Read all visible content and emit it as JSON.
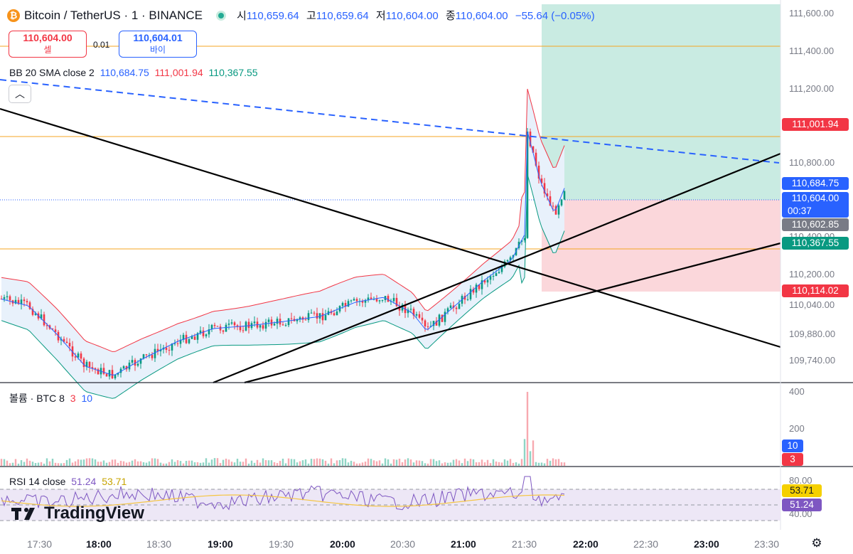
{
  "header": {
    "title": "Bitcoin / TetherUS · 1 · BINANCE",
    "ohlc": {
      "open_label": "시",
      "open": "110,659.64",
      "high_label": "고",
      "high": "110,659.64",
      "low_label": "저",
      "low": "110,604.00",
      "close_label": "종",
      "close": "110,604.00",
      "change": "−55.64 (−0.05%)"
    }
  },
  "trade": {
    "sell_price": "110,604.00",
    "sell_label": "셀",
    "spread": "0.01",
    "buy_price": "110,604.01",
    "buy_label": "바이"
  },
  "indicators": {
    "bb": {
      "name": "BB 20 SMA close 2",
      "basis": "110,684.75",
      "upper": "111,001.94",
      "lower": "110,367.55"
    },
    "volume": {
      "name": "볼륨 · BTC 8",
      "a": "3",
      "b": "10"
    },
    "rsi": {
      "name": "RSI 14 close",
      "value": "51.24",
      "ma": "53.71"
    }
  },
  "price_axis": {
    "ticks": [
      "111,600.00",
      "111,400.00",
      "111,200.00",
      "110,800.00",
      "110,400.00",
      "110,200.00",
      "110,040.00",
      "109,880.00",
      "109,740.00"
    ],
    "tags": {
      "upper": "111,001.94",
      "basis": "110,684.75",
      "last": "110,604.00",
      "countdown": "00:37",
      "prev": "110,602.85",
      "lower": "110,367.55",
      "stop": "110,114.02"
    }
  },
  "volume_axis": {
    "ticks": [
      "400",
      "200"
    ],
    "tags": [
      "10",
      "3"
    ]
  },
  "rsi_axis": {
    "ticks": [
      "80.00",
      "40.00"
    ],
    "tags": [
      "53.71",
      "51.24"
    ]
  },
  "time_axis": [
    {
      "label": "17:30",
      "bold": false
    },
    {
      "label": "18:00",
      "bold": true
    },
    {
      "label": "18:30",
      "bold": false
    },
    {
      "label": "19:00",
      "bold": true
    },
    {
      "label": "19:30",
      "bold": false
    },
    {
      "label": "20:00",
      "bold": true
    },
    {
      "label": "20:30",
      "bold": false
    },
    {
      "label": "21:00",
      "bold": true
    },
    {
      "label": "21:30",
      "bold": false
    },
    {
      "label": "22:00",
      "bold": true
    },
    {
      "label": "22:30",
      "bold": false
    },
    {
      "label": "23:00",
      "bold": true
    },
    {
      "label": "23:30",
      "bold": false
    }
  ],
  "colors": {
    "up": "#089981",
    "down": "#f23645",
    "bb_upper": "#f23645",
    "bb_lower": "#089981",
    "bb_basis": "#2962ff",
    "fill": "#e8f1fb",
    "profit": "#c9ebe2",
    "loss": "#fbd7db",
    "hline": "#f5a623",
    "accent": "#2962ff"
  },
  "branding": {
    "name": "TradingView"
  },
  "icons": {
    "symbol": "bitcoin-icon",
    "status": "market-open-dot-icon",
    "collapse": "chevron-up-icon",
    "settings": "gear-icon"
  }
}
